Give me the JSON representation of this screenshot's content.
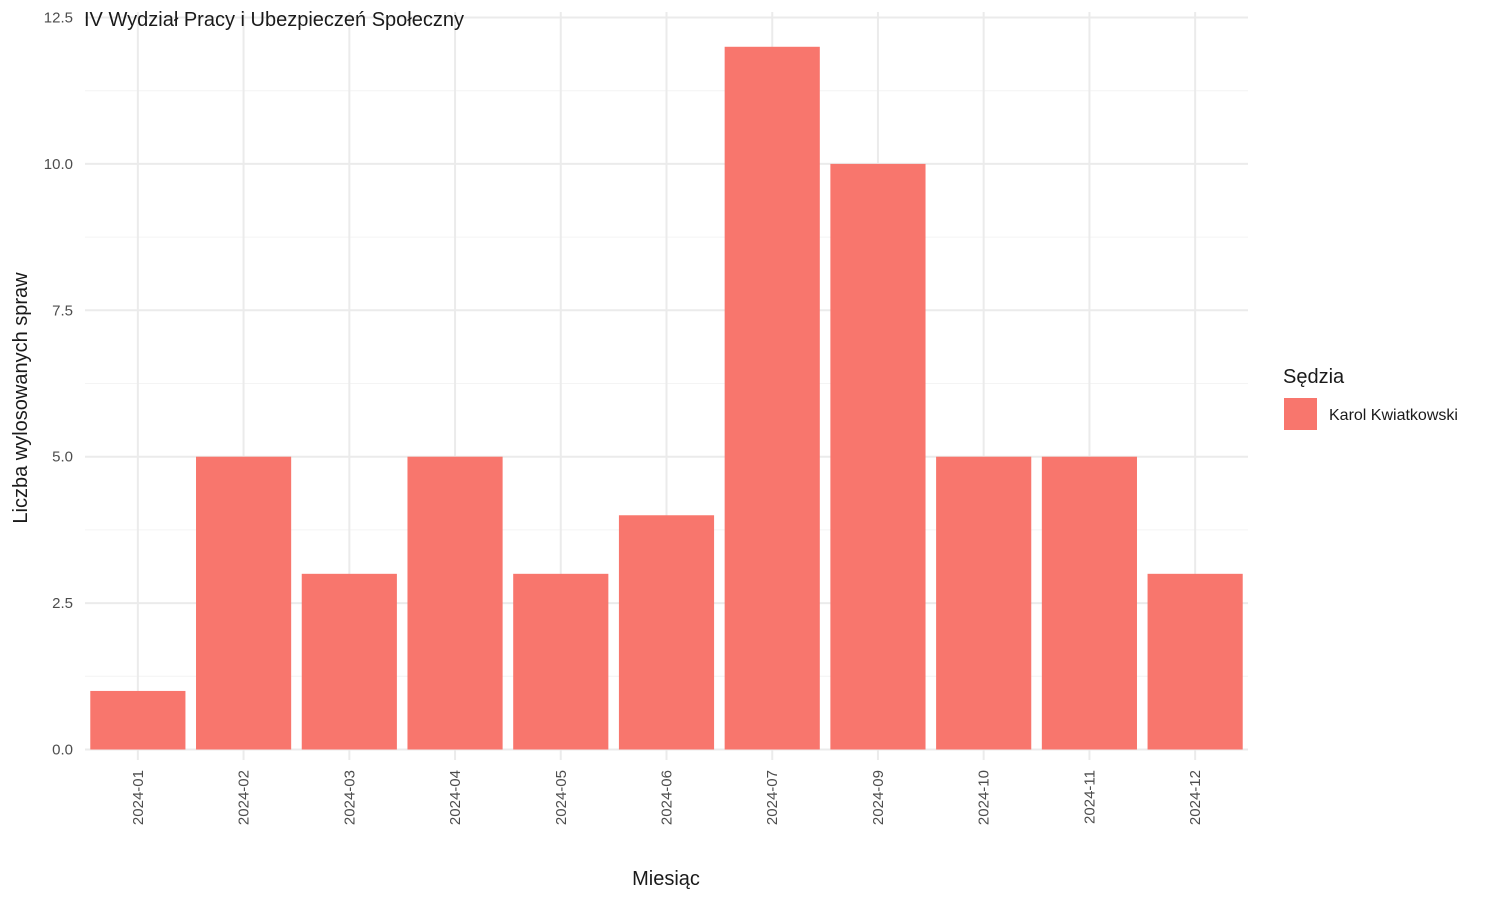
{
  "chart_data": {
    "type": "bar",
    "title": "IV Wydział Pracy i Ubezpieczeń Społeczny",
    "xlabel": "Miesiąc",
    "ylabel": "Liczba wylosowanych spraw",
    "categories": [
      "2024-01",
      "2024-02",
      "2024-03",
      "2024-04",
      "2024-05",
      "2024-06",
      "2024-07",
      "2024-09",
      "2024-10",
      "2024-11",
      "2024-12"
    ],
    "series": [
      {
        "name": "Karol Kwiatkowski",
        "values": [
          1,
          5,
          3,
          5,
          3,
          4,
          12,
          10,
          5,
          5,
          3
        ],
        "color": "#F8766D"
      }
    ],
    "ylim": [
      0,
      12.5
    ],
    "yticks": [
      "0.0",
      "2.5",
      "5.0",
      "7.5",
      "10.0",
      "12.5"
    ],
    "grid": true,
    "legend": {
      "title": "Sędzia",
      "position": "right"
    }
  }
}
